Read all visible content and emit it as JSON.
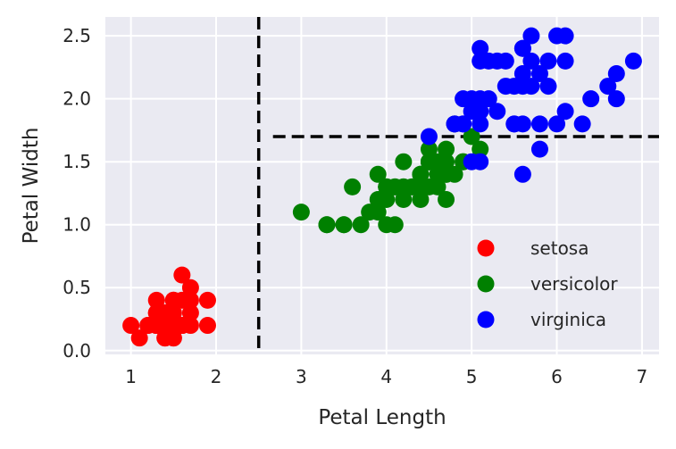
{
  "chart_data": {
    "type": "scatter",
    "title": "",
    "xlabel": "Petal Length",
    "ylabel": "Petal Width",
    "xlim": [
      0.7,
      7.2
    ],
    "ylim": [
      -0.03,
      2.65
    ],
    "xticks": [
      "1",
      "2",
      "3",
      "4",
      "5",
      "6",
      "7"
    ],
    "yticks": [
      "0.0",
      "0.5",
      "1.0",
      "1.5",
      "2.0",
      "2.5"
    ],
    "grid": true,
    "legend_position": "lower-right",
    "background": "#eaeaf2",
    "series": [
      {
        "name": "setosa",
        "color": "#ff0000",
        "points": [
          [
            1.4,
            0.2
          ],
          [
            1.4,
            0.2
          ],
          [
            1.3,
            0.2
          ],
          [
            1.5,
            0.2
          ],
          [
            1.4,
            0.2
          ],
          [
            1.7,
            0.4
          ],
          [
            1.4,
            0.3
          ],
          [
            1.5,
            0.2
          ],
          [
            1.4,
            0.2
          ],
          [
            1.5,
            0.1
          ],
          [
            1.5,
            0.2
          ],
          [
            1.6,
            0.2
          ],
          [
            1.4,
            0.1
          ],
          [
            1.1,
            0.1
          ],
          [
            1.2,
            0.2
          ],
          [
            1.5,
            0.4
          ],
          [
            1.3,
            0.4
          ],
          [
            1.4,
            0.3
          ],
          [
            1.7,
            0.3
          ],
          [
            1.5,
            0.3
          ],
          [
            1.7,
            0.2
          ],
          [
            1.5,
            0.4
          ],
          [
            1.0,
            0.2
          ],
          [
            1.7,
            0.5
          ],
          [
            1.9,
            0.2
          ],
          [
            1.6,
            0.2
          ],
          [
            1.6,
            0.4
          ],
          [
            1.5,
            0.2
          ],
          [
            1.4,
            0.2
          ],
          [
            1.6,
            0.2
          ],
          [
            1.6,
            0.2
          ],
          [
            1.5,
            0.4
          ],
          [
            1.5,
            0.1
          ],
          [
            1.4,
            0.2
          ],
          [
            1.5,
            0.2
          ],
          [
            1.2,
            0.2
          ],
          [
            1.3,
            0.2
          ],
          [
            1.4,
            0.1
          ],
          [
            1.3,
            0.2
          ],
          [
            1.5,
            0.2
          ],
          [
            1.3,
            0.3
          ],
          [
            1.3,
            0.3
          ],
          [
            1.3,
            0.2
          ],
          [
            1.6,
            0.6
          ],
          [
            1.9,
            0.4
          ],
          [
            1.4,
            0.3
          ],
          [
            1.6,
            0.2
          ],
          [
            1.4,
            0.2
          ],
          [
            1.5,
            0.2
          ],
          [
            1.4,
            0.2
          ]
        ]
      },
      {
        "name": "versicolor",
        "color": "#008000",
        "points": [
          [
            4.7,
            1.4
          ],
          [
            4.5,
            1.5
          ],
          [
            4.9,
            1.5
          ],
          [
            4.0,
            1.3
          ],
          [
            4.6,
            1.5
          ],
          [
            4.5,
            1.3
          ],
          [
            4.7,
            1.6
          ],
          [
            3.3,
            1.0
          ],
          [
            4.6,
            1.3
          ],
          [
            3.9,
            1.4
          ],
          [
            3.5,
            1.0
          ],
          [
            4.2,
            1.5
          ],
          [
            4.0,
            1.0
          ],
          [
            4.7,
            1.4
          ],
          [
            3.6,
            1.3
          ],
          [
            4.4,
            1.4
          ],
          [
            4.5,
            1.5
          ],
          [
            4.1,
            1.0
          ],
          [
            4.5,
            1.5
          ],
          [
            3.9,
            1.1
          ],
          [
            4.8,
            1.8
          ],
          [
            4.0,
            1.3
          ],
          [
            4.9,
            1.5
          ],
          [
            4.7,
            1.2
          ],
          [
            4.3,
            1.3
          ],
          [
            4.4,
            1.4
          ],
          [
            4.8,
            1.4
          ],
          [
            5.0,
            1.7
          ],
          [
            4.5,
            1.5
          ],
          [
            3.5,
            1.0
          ],
          [
            3.8,
            1.1
          ],
          [
            3.7,
            1.0
          ],
          [
            3.9,
            1.2
          ],
          [
            5.1,
            1.6
          ],
          [
            4.5,
            1.5
          ],
          [
            4.5,
            1.6
          ],
          [
            4.7,
            1.5
          ],
          [
            4.4,
            1.3
          ],
          [
            4.1,
            1.3
          ],
          [
            4.0,
            1.3
          ],
          [
            4.4,
            1.2
          ],
          [
            4.6,
            1.4
          ],
          [
            4.0,
            1.2
          ],
          [
            3.3,
            1.0
          ],
          [
            4.2,
            1.3
          ],
          [
            4.2,
            1.2
          ],
          [
            4.2,
            1.3
          ],
          [
            4.3,
            1.3
          ],
          [
            3.0,
            1.1
          ],
          [
            4.1,
            1.3
          ]
        ]
      },
      {
        "name": "virginica",
        "color": "#0000ff",
        "points": [
          [
            6.0,
            2.5
          ],
          [
            5.1,
            1.9
          ],
          [
            5.9,
            2.1
          ],
          [
            5.6,
            1.8
          ],
          [
            5.8,
            2.2
          ],
          [
            6.6,
            2.1
          ],
          [
            4.5,
            1.7
          ],
          [
            6.3,
            1.8
          ],
          [
            5.8,
            1.8
          ],
          [
            6.1,
            2.5
          ],
          [
            5.1,
            2.0
          ],
          [
            5.3,
            1.9
          ],
          [
            5.5,
            2.1
          ],
          [
            5.0,
            2.0
          ],
          [
            5.1,
            2.4
          ],
          [
            5.3,
            2.3
          ],
          [
            5.5,
            1.8
          ],
          [
            6.7,
            2.2
          ],
          [
            6.9,
            2.3
          ],
          [
            5.0,
            1.5
          ],
          [
            5.7,
            2.3
          ],
          [
            4.9,
            2.0
          ],
          [
            6.7,
            2.0
          ],
          [
            4.9,
            1.8
          ],
          [
            5.7,
            2.1
          ],
          [
            6.0,
            1.8
          ],
          [
            4.8,
            1.8
          ],
          [
            4.9,
            1.8
          ],
          [
            5.6,
            2.1
          ],
          [
            5.8,
            1.6
          ],
          [
            6.1,
            1.9
          ],
          [
            6.4,
            2.0
          ],
          [
            5.6,
            2.2
          ],
          [
            5.1,
            1.5
          ],
          [
            5.6,
            1.4
          ],
          [
            6.1,
            2.3
          ],
          [
            5.6,
            2.4
          ],
          [
            5.5,
            1.8
          ],
          [
            4.8,
            1.8
          ],
          [
            5.4,
            2.1
          ],
          [
            5.6,
            2.4
          ],
          [
            5.1,
            2.3
          ],
          [
            5.1,
            1.9
          ],
          [
            5.9,
            2.3
          ],
          [
            5.7,
            2.5
          ],
          [
            5.2,
            2.3
          ],
          [
            5.0,
            1.9
          ],
          [
            5.2,
            2.0
          ],
          [
            5.4,
            2.3
          ],
          [
            5.1,
            1.8
          ]
        ]
      }
    ],
    "reference_lines": [
      {
        "orientation": "vertical",
        "x": 2.5,
        "style": "dashed",
        "color": "#000000"
      },
      {
        "orientation": "horizontal",
        "y": 1.7,
        "x_from": 2.5,
        "style": "dashed",
        "color": "#000000"
      }
    ]
  }
}
